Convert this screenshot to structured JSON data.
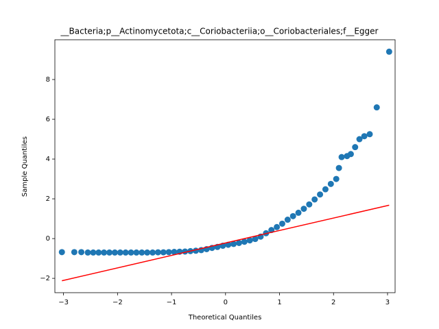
{
  "chart_data": {
    "type": "scatter",
    "title": "__Bacteria;p__Actinomycetota;c__Coriobacteriia;o__Coriobacteriales;f__Egger",
    "xlabel": "Theoretical Quantiles",
    "ylabel": "Sample Quantiles",
    "xlim": [
      -3.16,
      3.14
    ],
    "ylim": [
      -2.72,
      10.0
    ],
    "xticks": [
      {
        "value": -3,
        "label": "−3"
      },
      {
        "value": -2,
        "label": "−2"
      },
      {
        "value": -1,
        "label": "−1"
      },
      0,
      1,
      2,
      3
    ],
    "yticks": [
      {
        "value": -2,
        "label": "−2"
      },
      0,
      2,
      4,
      6,
      8
    ],
    "series": [
      {
        "type": "scatter",
        "color": "#1f77b4",
        "x": [
          -3.03,
          -2.8,
          -2.67,
          -2.55,
          -2.45,
          -2.35,
          -2.25,
          -2.15,
          -2.05,
          -1.95,
          -1.85,
          -1.75,
          -1.65,
          -1.55,
          -1.45,
          -1.35,
          -1.25,
          -1.15,
          -1.05,
          -0.95,
          -0.85,
          -0.75,
          -0.65,
          -0.55,
          -0.45,
          -0.35,
          -0.25,
          -0.15,
          -0.05,
          0.05,
          0.15,
          0.25,
          0.35,
          0.45,
          0.55,
          0.65,
          0.75,
          0.85,
          0.95,
          1.05,
          1.15,
          1.25,
          1.35,
          1.45,
          1.55,
          1.65,
          1.75,
          1.85,
          1.95,
          2.05,
          2.1,
          2.15,
          2.25,
          2.32,
          2.4,
          2.48,
          2.57,
          2.67,
          2.8,
          3.03
        ],
        "values": [
          -0.68,
          -0.68,
          -0.68,
          -0.7,
          -0.7,
          -0.7,
          -0.7,
          -0.7,
          -0.7,
          -0.7,
          -0.7,
          -0.7,
          -0.7,
          -0.7,
          -0.7,
          -0.7,
          -0.69,
          -0.69,
          -0.68,
          -0.67,
          -0.66,
          -0.65,
          -0.63,
          -0.61,
          -0.58,
          -0.53,
          -0.47,
          -0.42,
          -0.36,
          -0.31,
          -0.27,
          -0.22,
          -0.16,
          -0.09,
          -0.02,
          0.1,
          0.27,
          0.43,
          0.58,
          0.75,
          0.95,
          1.13,
          1.3,
          1.5,
          1.72,
          1.97,
          2.22,
          2.48,
          2.75,
          3.0,
          3.55,
          4.1,
          4.15,
          4.25,
          4.6,
          5.0,
          5.15,
          5.25,
          6.6,
          9.4
        ]
      },
      {
        "type": "line",
        "color": "#ff0000",
        "x": [
          -3.03,
          3.03
        ],
        "values": [
          -2.12,
          1.68
        ]
      }
    ]
  }
}
